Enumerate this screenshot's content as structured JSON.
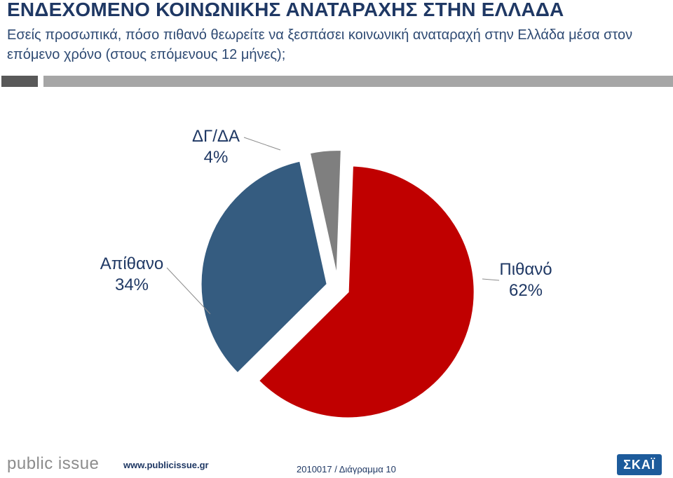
{
  "header": {
    "title": "ΕΝΔΕΧΟΜΕΝΟ ΚΟΙΝΩΝΙΚΗΣ ΑΝΑΤΑΡΑΧΗΣ ΣΤΗΝ ΕΛΛΑΔΑ",
    "question": "Εσείς προσωπικά, πόσο πιθανό θεωρείτε να ξεσπάσει κοινωνική αναταραχή στην Ελλάδα μέσα στον επόμενο χρόνο (στους επόμενους 12 μήνες);"
  },
  "colors": {
    "title": "#1f3864",
    "rule_dark": "#595959",
    "rule_light": "#a6a6a6",
    "skai": "#1d5b9b"
  },
  "chart_data": {
    "type": "pie",
    "title": "",
    "order": "clockwise from top",
    "slices": [
      {
        "label": "Πιθανό",
        "value": 62,
        "value_label": "62%",
        "color": "#c00000",
        "exploded": true
      },
      {
        "label": "Απίθανο",
        "value": 34,
        "value_label": "34%",
        "color": "#355c80",
        "exploded": true
      },
      {
        "label": "ΔΓ/ΔΑ",
        "value": 4,
        "value_label": "4%",
        "color": "#7f7f7f",
        "exploded": true
      }
    ],
    "legend": "none"
  },
  "footer": {
    "logo_text": "public issue",
    "url": "www.publicissue.gr",
    "reference": "2010017 / Διάγραμμα 10",
    "skai_logo_text": "ΣΚΑΪ"
  }
}
